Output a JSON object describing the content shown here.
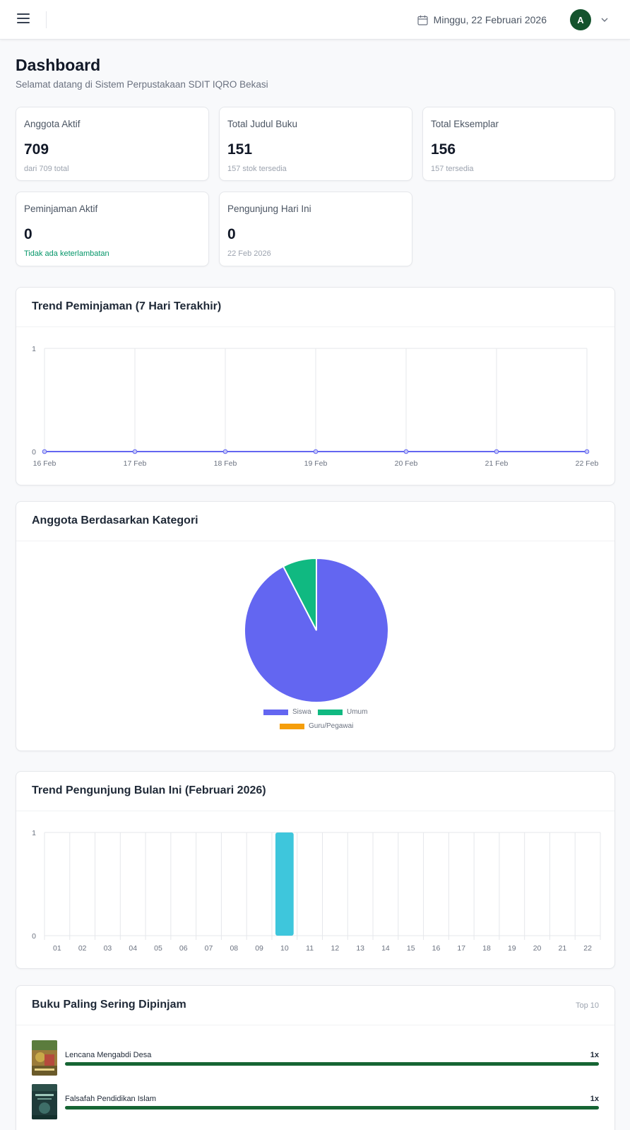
{
  "header": {
    "date": "Minggu, 22 Februari 2026",
    "avatar_initial": "A",
    "icons": [
      "hamburger-icon",
      "calendar-icon",
      "chevron-down-icon"
    ]
  },
  "page": {
    "title": "Dashboard",
    "subtitle": "Selamat datang di Sistem Perpustakaan SDIT IQRO Bekasi"
  },
  "stats": [
    {
      "label": "Anggota Aktif",
      "value": "709",
      "sub": "dari 709 total"
    },
    {
      "label": "Total Judul Buku",
      "value": "151",
      "sub": "157 stok tersedia"
    },
    {
      "label": "Total Eksemplar",
      "value": "156",
      "sub": "157 tersedia"
    },
    {
      "label": "Peminjaman Aktif",
      "value": "0",
      "sub": "Tidak ada keterlambatan"
    },
    {
      "label": "Pengunjung Hari Ini",
      "value": "0",
      "sub": "22 Feb 2026"
    }
  ],
  "panels": {
    "loan_trend_title": "Trend Peminjaman (7 Hari Terakhir)",
    "member_category_title": "Anggota Berdasarkan Kategori",
    "visitor_trend_title": "Trend Pengunjung Bulan Ini (Februari 2026)",
    "top_books_title": "Buku Paling Sering Dipinjam",
    "top_books_badge": "Top 10"
  },
  "chart_data": [
    {
      "type": "line",
      "title": "Trend Peminjaman (7 Hari Terakhir)",
      "x": [
        "16 Feb",
        "17 Feb",
        "18 Feb",
        "19 Feb",
        "20 Feb",
        "21 Feb",
        "22 Feb"
      ],
      "series": [
        {
          "values": [
            0,
            0,
            0,
            0,
            0,
            0,
            0
          ],
          "color": "#6366f1"
        }
      ],
      "ylim": [
        0,
        1
      ],
      "yticks": [
        "0",
        "1"
      ],
      "grid": true
    },
    {
      "type": "pie",
      "title": "Anggota Berdasarkan Kategori",
      "labels": [
        "Siswa",
        "Umum",
        "Guru/Pegawai"
      ],
      "values": [
        655,
        54,
        0
      ],
      "colors": [
        "#6366f1",
        "#10b981",
        "#f59e0b"
      ],
      "legend": "bottom"
    },
    {
      "type": "bar",
      "title": "Trend Pengunjung Bulan Ini (Februari 2026)",
      "categories": [
        "01",
        "02",
        "03",
        "04",
        "05",
        "06",
        "07",
        "08",
        "09",
        "10",
        "11",
        "12",
        "13",
        "14",
        "15",
        "16",
        "17",
        "18",
        "19",
        "20",
        "21",
        "22"
      ],
      "values": [
        0,
        0,
        0,
        0,
        0,
        0,
        0,
        0,
        0,
        1,
        0,
        0,
        0,
        0,
        0,
        0,
        0,
        0,
        0,
        0,
        0,
        0
      ],
      "color": "#3ec6dc",
      "ylim": [
        0,
        1
      ],
      "yticks": [
        "0",
        "1"
      ],
      "grid": true
    }
  ],
  "top_books": [
    {
      "title": "Lencana Mengabdi Desa",
      "count": "1x",
      "fraction": 1.0
    },
    {
      "title": "Falsafah Pendidikan Islam",
      "count": "1x",
      "fraction": 1.0
    }
  ]
}
